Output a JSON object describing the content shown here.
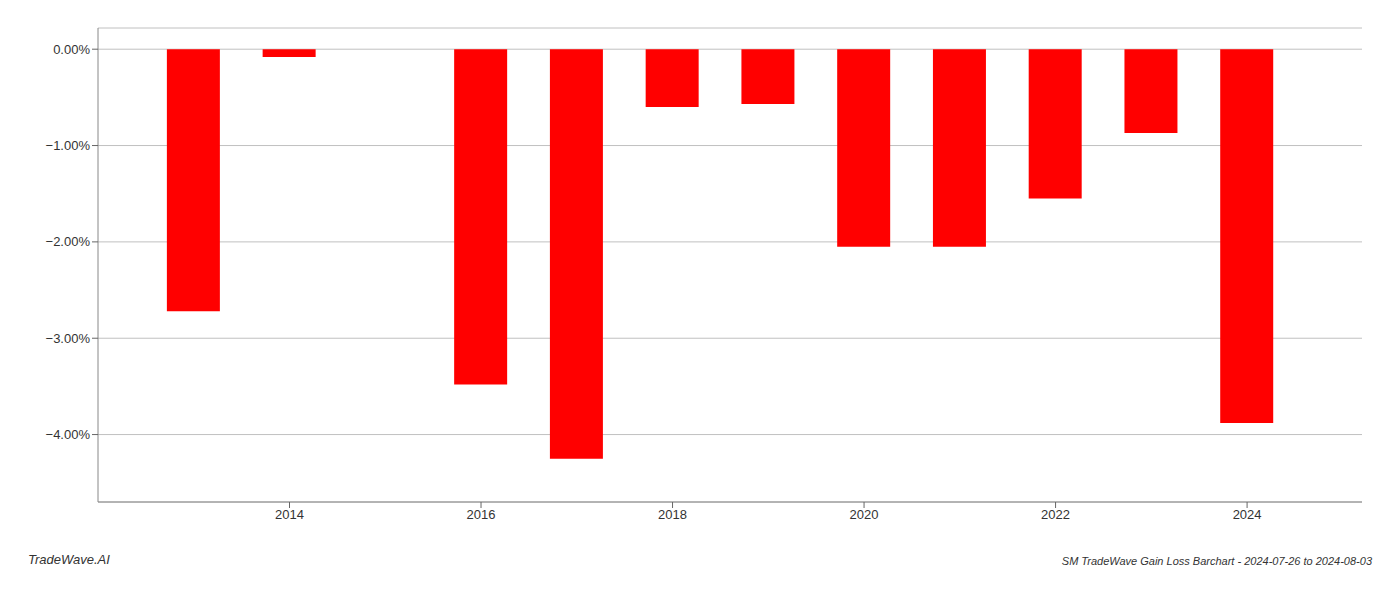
{
  "chart_data": {
    "type": "bar",
    "title": "SM TradeWave Gain Loss Barchart - 2024-07-26 to 2024-08-03",
    "annotations": [
      "TradeWave.AI"
    ],
    "x": [
      2013,
      2014,
      2016,
      2017,
      2018,
      2019,
      2020,
      2021,
      2022,
      2023,
      2024
    ],
    "values": [
      -2.72,
      -0.08,
      -3.48,
      -4.25,
      -0.6,
      -0.57,
      -2.05,
      -2.05,
      -1.55,
      -0.87,
      -3.88
    ],
    "color": "#ff0000",
    "xlim": [
      2012.0,
      2025.2
    ],
    "xticks": [
      2014,
      2016,
      2018,
      2020,
      2022,
      2024
    ],
    "ylim": [
      -4.7,
      0.22
    ],
    "yticks": [
      {
        "value": 0,
        "label": "0.00%"
      },
      {
        "value": -1,
        "label": "−1.00%"
      },
      {
        "value": -2,
        "label": "−2.00%"
      },
      {
        "value": -3,
        "label": "−3.00%"
      },
      {
        "value": -4,
        "label": "−4.00%"
      }
    ],
    "grid": true
  }
}
